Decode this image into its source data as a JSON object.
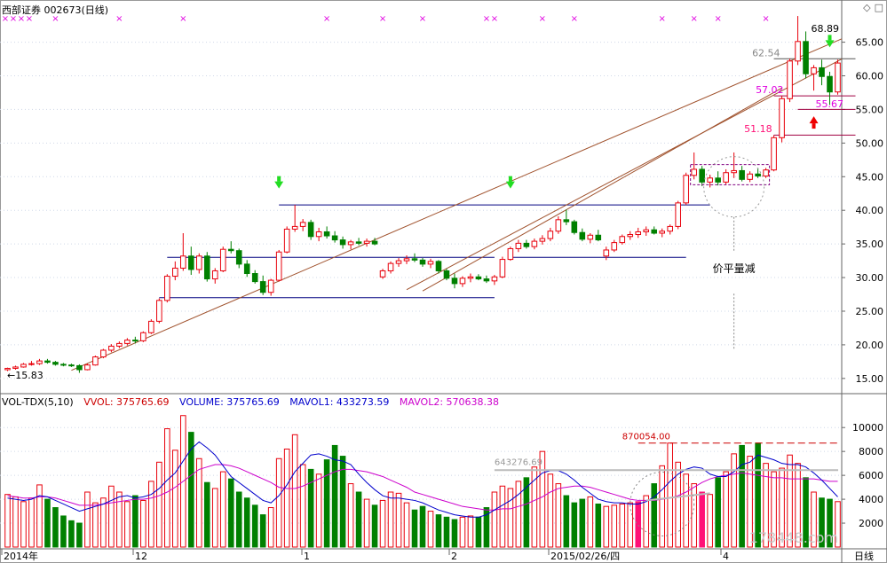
{
  "header": {
    "stock_name": "西部证券",
    "stock_code": "002673",
    "period": "(日线)",
    "diamond_icon": "diamond-icon",
    "square_icon": "square-icon"
  },
  "colors": {
    "up": "#e8000b",
    "down": "#008000",
    "trend": "#a0522d",
    "support": "#000080",
    "grid": "#cfd8e8",
    "ma1": "#0000cc",
    "ma2": "#cc00cc",
    "marker": "#e000e0",
    "arrow_down": "#22dd22",
    "arrow_up": "#ee0000",
    "highlight": "#ff1177"
  },
  "chart_data": [
    {
      "type": "candlestick",
      "title": "",
      "y_axis_ticks": [
        "65.00",
        "60.00",
        "55.00",
        "50.00",
        "45.00",
        "40.00",
        "35.00",
        "30.00",
        "25.00",
        "20.00",
        "15.00"
      ],
      "ylim": [
        13,
        68.9
      ],
      "x_axis_labels": [
        "2014年",
        "12",
        "1",
        "2",
        "2015/02/26/四",
        "4",
        "日线"
      ],
      "annotations": {
        "high_label": "68.89",
        "low_label": "←15.83",
        "levels": [
          "62.54",
          "57.02",
          "55.67",
          "51.18"
        ],
        "note": "价平量减"
      },
      "candles": [
        [
          16.3,
          16.6,
          16.1,
          16.5
        ],
        [
          16.5,
          16.9,
          16.3,
          16.7
        ],
        [
          16.7,
          17.3,
          16.6,
          17.1
        ],
        [
          17.1,
          17.6,
          16.9,
          17.2
        ],
        [
          17.2,
          17.9,
          17.0,
          17.6
        ],
        [
          17.6,
          17.9,
          17.2,
          17.4
        ],
        [
          17.4,
          17.6,
          16.9,
          17.1
        ],
        [
          17.1,
          17.3,
          16.8,
          17.0
        ],
        [
          17.0,
          17.2,
          16.7,
          16.9
        ],
        [
          16.9,
          17.1,
          15.83,
          16.3
        ],
        [
          16.3,
          17.2,
          16.2,
          17.0
        ],
        [
          17.0,
          18.4,
          16.9,
          18.2
        ],
        [
          18.2,
          19.4,
          18.0,
          19.2
        ],
        [
          19.2,
          20.1,
          18.9,
          19.8
        ],
        [
          19.8,
          20.5,
          19.5,
          20.2
        ],
        [
          20.2,
          21.0,
          19.9,
          20.7
        ],
        [
          20.7,
          21.2,
          20.2,
          20.6
        ],
        [
          20.6,
          22.0,
          20.4,
          21.8
        ],
        [
          21.8,
          23.8,
          21.6,
          23.5
        ],
        [
          23.5,
          26.9,
          23.2,
          26.6
        ],
        [
          26.6,
          30.5,
          26.3,
          30.2
        ],
        [
          30.2,
          32.4,
          29.6,
          31.4
        ],
        [
          31.4,
          36.6,
          31.0,
          33.2
        ],
        [
          33.2,
          34.6,
          30.4,
          31.2
        ],
        [
          31.2,
          33.6,
          30.6,
          33.2
        ],
        [
          33.2,
          33.8,
          29.4,
          29.8
        ],
        [
          29.8,
          31.4,
          29.1,
          31.0
        ],
        [
          31.0,
          34.6,
          30.8,
          34.2
        ],
        [
          34.2,
          35.4,
          33.6,
          34.0
        ],
        [
          34.0,
          34.3,
          31.4,
          32.0
        ],
        [
          32.0,
          32.6,
          30.1,
          30.6
        ],
        [
          30.6,
          31.1,
          29.1,
          29.4
        ],
        [
          29.4,
          30.3,
          27.4,
          27.8
        ],
        [
          27.8,
          29.8,
          27.3,
          29.6
        ],
        [
          29.6,
          34.1,
          29.4,
          33.8
        ],
        [
          33.8,
          37.6,
          33.6,
          37.2
        ],
        [
          37.2,
          40.8,
          36.8,
          37.6
        ],
        [
          37.6,
          38.7,
          36.9,
          38.2
        ],
        [
          38.2,
          38.6,
          35.6,
          36.1
        ],
        [
          36.1,
          37.4,
          35.4,
          36.8
        ],
        [
          36.8,
          37.6,
          35.8,
          36.2
        ],
        [
          36.2,
          36.9,
          35.2,
          35.6
        ],
        [
          35.6,
          36.1,
          34.3,
          34.9
        ],
        [
          34.9,
          35.6,
          34.2,
          35.3
        ],
        [
          35.3,
          35.9,
          34.8,
          35.1
        ],
        [
          35.1,
          35.8,
          34.6,
          35.4
        ],
        [
          35.4,
          35.9,
          34.8,
          35.0
        ],
        [
          30.1,
          31.3,
          29.8,
          31.0
        ],
        [
          31.0,
          32.4,
          30.6,
          32.1
        ],
        [
          32.1,
          32.9,
          31.6,
          32.5
        ],
        [
          32.5,
          33.3,
          32.0,
          32.8
        ],
        [
          32.8,
          33.6,
          32.3,
          32.6
        ],
        [
          32.6,
          32.9,
          31.6,
          32.0
        ],
        [
          32.0,
          32.8,
          31.4,
          32.4
        ],
        [
          32.4,
          32.6,
          30.6,
          31.0
        ],
        [
          31.0,
          31.3,
          29.6,
          29.9
        ],
        [
          29.9,
          30.6,
          28.4,
          29.1
        ],
        [
          29.1,
          30.2,
          28.6,
          29.9
        ],
        [
          29.9,
          30.6,
          29.3,
          30.1
        ],
        [
          30.1,
          30.5,
          29.6,
          29.8
        ],
        [
          29.8,
          30.3,
          29.2,
          29.5
        ],
        [
          29.5,
          30.4,
          28.9,
          30.1
        ],
        [
          30.1,
          33.1,
          29.9,
          32.7
        ],
        [
          32.7,
          34.6,
          32.5,
          34.3
        ],
        [
          34.3,
          35.6,
          33.8,
          35.1
        ],
        [
          35.1,
          35.6,
          34.3,
          34.6
        ],
        [
          34.6,
          35.8,
          34.2,
          35.4
        ],
        [
          35.4,
          36.3,
          34.9,
          35.8
        ],
        [
          35.8,
          37.4,
          35.4,
          36.9
        ],
        [
          36.9,
          39.1,
          36.5,
          38.6
        ],
        [
          38.6,
          40.1,
          37.8,
          38.3
        ],
        [
          38.3,
          38.6,
          36.4,
          36.7
        ],
        [
          36.7,
          37.3,
          35.4,
          35.7
        ],
        [
          35.7,
          36.6,
          35.1,
          36.3
        ],
        [
          36.3,
          37.1,
          35.4,
          35.6
        ],
        [
          33.2,
          34.6,
          32.6,
          34.1
        ],
        [
          34.1,
          35.6,
          33.8,
          35.2
        ],
        [
          35.2,
          36.4,
          34.9,
          36.1
        ],
        [
          36.1,
          36.9,
          35.6,
          36.4
        ],
        [
          36.4,
          37.4,
          35.9,
          36.8
        ],
        [
          36.8,
          37.6,
          36.2,
          37.1
        ],
        [
          37.1,
          37.6,
          36.4,
          36.6
        ],
        [
          36.6,
          37.3,
          36.0,
          36.9
        ],
        [
          36.9,
          37.9,
          36.4,
          37.6
        ],
        [
          37.6,
          41.4,
          37.2,
          41.1
        ],
        [
          41.1,
          45.6,
          40.8,
          45.2
        ],
        [
          45.2,
          48.6,
          44.6,
          46.1
        ],
        [
          46.1,
          46.6,
          43.6,
          44.2
        ],
        [
          44.2,
          45.3,
          43.4,
          44.8
        ],
        [
          44.8,
          45.8,
          43.7,
          44.2
        ],
        [
          44.2,
          46.1,
          43.8,
          45.6
        ],
        [
          45.6,
          48.6,
          44.8,
          45.9
        ],
        [
          45.9,
          46.6,
          44.3,
          44.6
        ],
        [
          44.6,
          45.8,
          44.2,
          45.4
        ],
        [
          45.4,
          46.3,
          44.8,
          45.1
        ],
        [
          45.1,
          46.3,
          44.8,
          46.0
        ],
        [
          46.0,
          51.18,
          45.8,
          50.8
        ],
        [
          50.8,
          57.02,
          50.1,
          56.6
        ],
        [
          56.6,
          62.54,
          56.1,
          62.2
        ],
        [
          62.2,
          68.89,
          61.6,
          65.1
        ],
        [
          65.1,
          66.6,
          59.6,
          60.3
        ],
        [
          60.3,
          61.6,
          57.8,
          61.2
        ],
        [
          61.2,
          62.4,
          58.6,
          59.9
        ],
        [
          59.9,
          60.6,
          55.67,
          57.6
        ],
        [
          57.6,
          62.4,
          57.2,
          61.9
        ]
      ]
    },
    {
      "type": "bar",
      "title": "VOL-TDX(5,10)",
      "series_labels": [
        "VVOL: 375765.69",
        "VOLUME: 375765.69",
        "MAVOL1: 433273.59",
        "MAVOL2: 570638.38"
      ],
      "y_axis_ticks": [
        "10000",
        "8000",
        "6000",
        "4000",
        "2000"
      ],
      "ylim": [
        0,
        11500
      ],
      "annotations": {
        "peak_label": "870054.00",
        "mid_label": "643276.69"
      },
      "watermark": "178448.com",
      "volumes": [
        4400,
        4200,
        3800,
        4100,
        5200,
        4000,
        3300,
        2600,
        2200,
        2000,
        4600,
        3700,
        4100,
        5100,
        4600,
        3800,
        4300,
        3900,
        5500,
        7100,
        9900,
        8100,
        11000,
        9600,
        7400,
        5400,
        4900,
        6300,
        5700,
        4600,
        4100,
        3500,
        2700,
        3300,
        7400,
        8200,
        9400,
        6900,
        6500,
        6100,
        7300,
        8500,
        7600,
        5300,
        4600,
        4000,
        3500,
        3900,
        4600,
        4500,
        3700,
        3100,
        3400,
        3000,
        2700,
        2500,
        2300,
        2500,
        2600,
        2500,
        3300,
        4600,
        5100,
        4900,
        5500,
        5800,
        6700,
        8000,
        6100,
        5300,
        4300,
        3700,
        4000,
        4200,
        3600,
        3400,
        3500,
        3600,
        3700,
        3800,
        4300,
        5300,
        6800,
        8700,
        7100,
        6100,
        5300,
        4600,
        4400,
        5800,
        6300,
        7800,
        8500,
        7600,
        8700,
        7000,
        6300,
        6600,
        7700,
        7000,
        5800,
        4600,
        4100,
        4000,
        3800
      ],
      "mavol1": [
        4100,
        4000,
        3900,
        4000,
        4300,
        4200,
        3900,
        3600,
        3300,
        3000,
        3200,
        3400,
        3600,
        3900,
        4200,
        4300,
        4100,
        4200,
        4400,
        4900,
        5600,
        6200,
        7200,
        8200,
        8800,
        8300,
        7700,
        6800,
        5900,
        5400,
        4900,
        4400,
        3900,
        3700,
        4300,
        5200,
        6300,
        7000,
        7700,
        7800,
        7600,
        7300,
        7200,
        6900,
        6100,
        5400,
        4800,
        4300,
        4100,
        4100,
        4000,
        3900,
        3700,
        3400,
        3100,
        2900,
        2700,
        2600,
        2500,
        2500,
        2700,
        3100,
        3500,
        3900,
        4400,
        5000,
        5600,
        6200,
        6400,
        6400,
        6100,
        5600,
        5000,
        4500,
        4000,
        3800,
        3700,
        3700,
        3600,
        3600,
        3800,
        4200,
        4800,
        5500,
        6100,
        6500,
        6700,
        6600,
        6100,
        5900,
        5900,
        6300,
        6900,
        7100,
        7700,
        7500,
        7300,
        7000,
        6900,
        6900,
        6700,
        6200,
        5600,
        4900,
        4200
      ],
      "mavol2": [
        4300,
        4200,
        4100,
        4100,
        4200,
        4200,
        4100,
        3900,
        3700,
        3500,
        3500,
        3500,
        3600,
        3700,
        3800,
        3900,
        4000,
        4000,
        4100,
        4300,
        4600,
        5000,
        5500,
        6000,
        6500,
        6700,
        6900,
        6900,
        6800,
        6600,
        6300,
        6000,
        5700,
        5400,
        5000,
        4900,
        4900,
        5100,
        5400,
        5700,
        6000,
        6300,
        6500,
        6500,
        6400,
        6300,
        6100,
        5900,
        5600,
        5300,
        5000,
        4600,
        4400,
        4200,
        4000,
        3800,
        3600,
        3400,
        3300,
        3200,
        3100,
        3100,
        3200,
        3200,
        3400,
        3600,
        3900,
        4200,
        4600,
        4900,
        5000,
        5100,
        5100,
        5000,
        4800,
        4600,
        4400,
        4200,
        4000,
        3900,
        3900,
        3900,
        4000,
        4100,
        4300,
        4600,
        5000,
        5400,
        5700,
        5900,
        6000,
        6100,
        6200,
        6100,
        6000,
        5900,
        5800,
        5800,
        5700,
        5700,
        5700,
        5700,
        5600,
        5500,
        5500
      ]
    }
  ]
}
